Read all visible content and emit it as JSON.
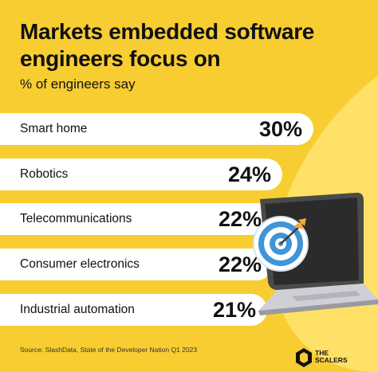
{
  "chart_data": {
    "type": "bar",
    "orientation": "horizontal",
    "title": "Markets embedded software engineers focus on",
    "subtitle": "% of engineers say",
    "categories": [
      "Smart home",
      "Robotics",
      "Telecommunications",
      "Consumer electronics",
      "Industrial automation"
    ],
    "values": [
      30,
      24,
      22,
      22,
      21
    ],
    "value_labels": [
      "30%",
      "24%",
      "22%",
      "22%",
      "21%"
    ],
    "source": "Source: SlashData, State of the Developer Nation Q1 2023"
  },
  "brand": {
    "name": "THE SCALERS",
    "line1": "THE",
    "line2": "SCALERS"
  },
  "colors": {
    "background": "#f8cd32",
    "accent_curve": "#ffe167",
    "bar": "#ffffff",
    "text": "#111111"
  },
  "icons": [
    "target-icon",
    "laptop-icon",
    "scalers-logo-icon"
  ]
}
